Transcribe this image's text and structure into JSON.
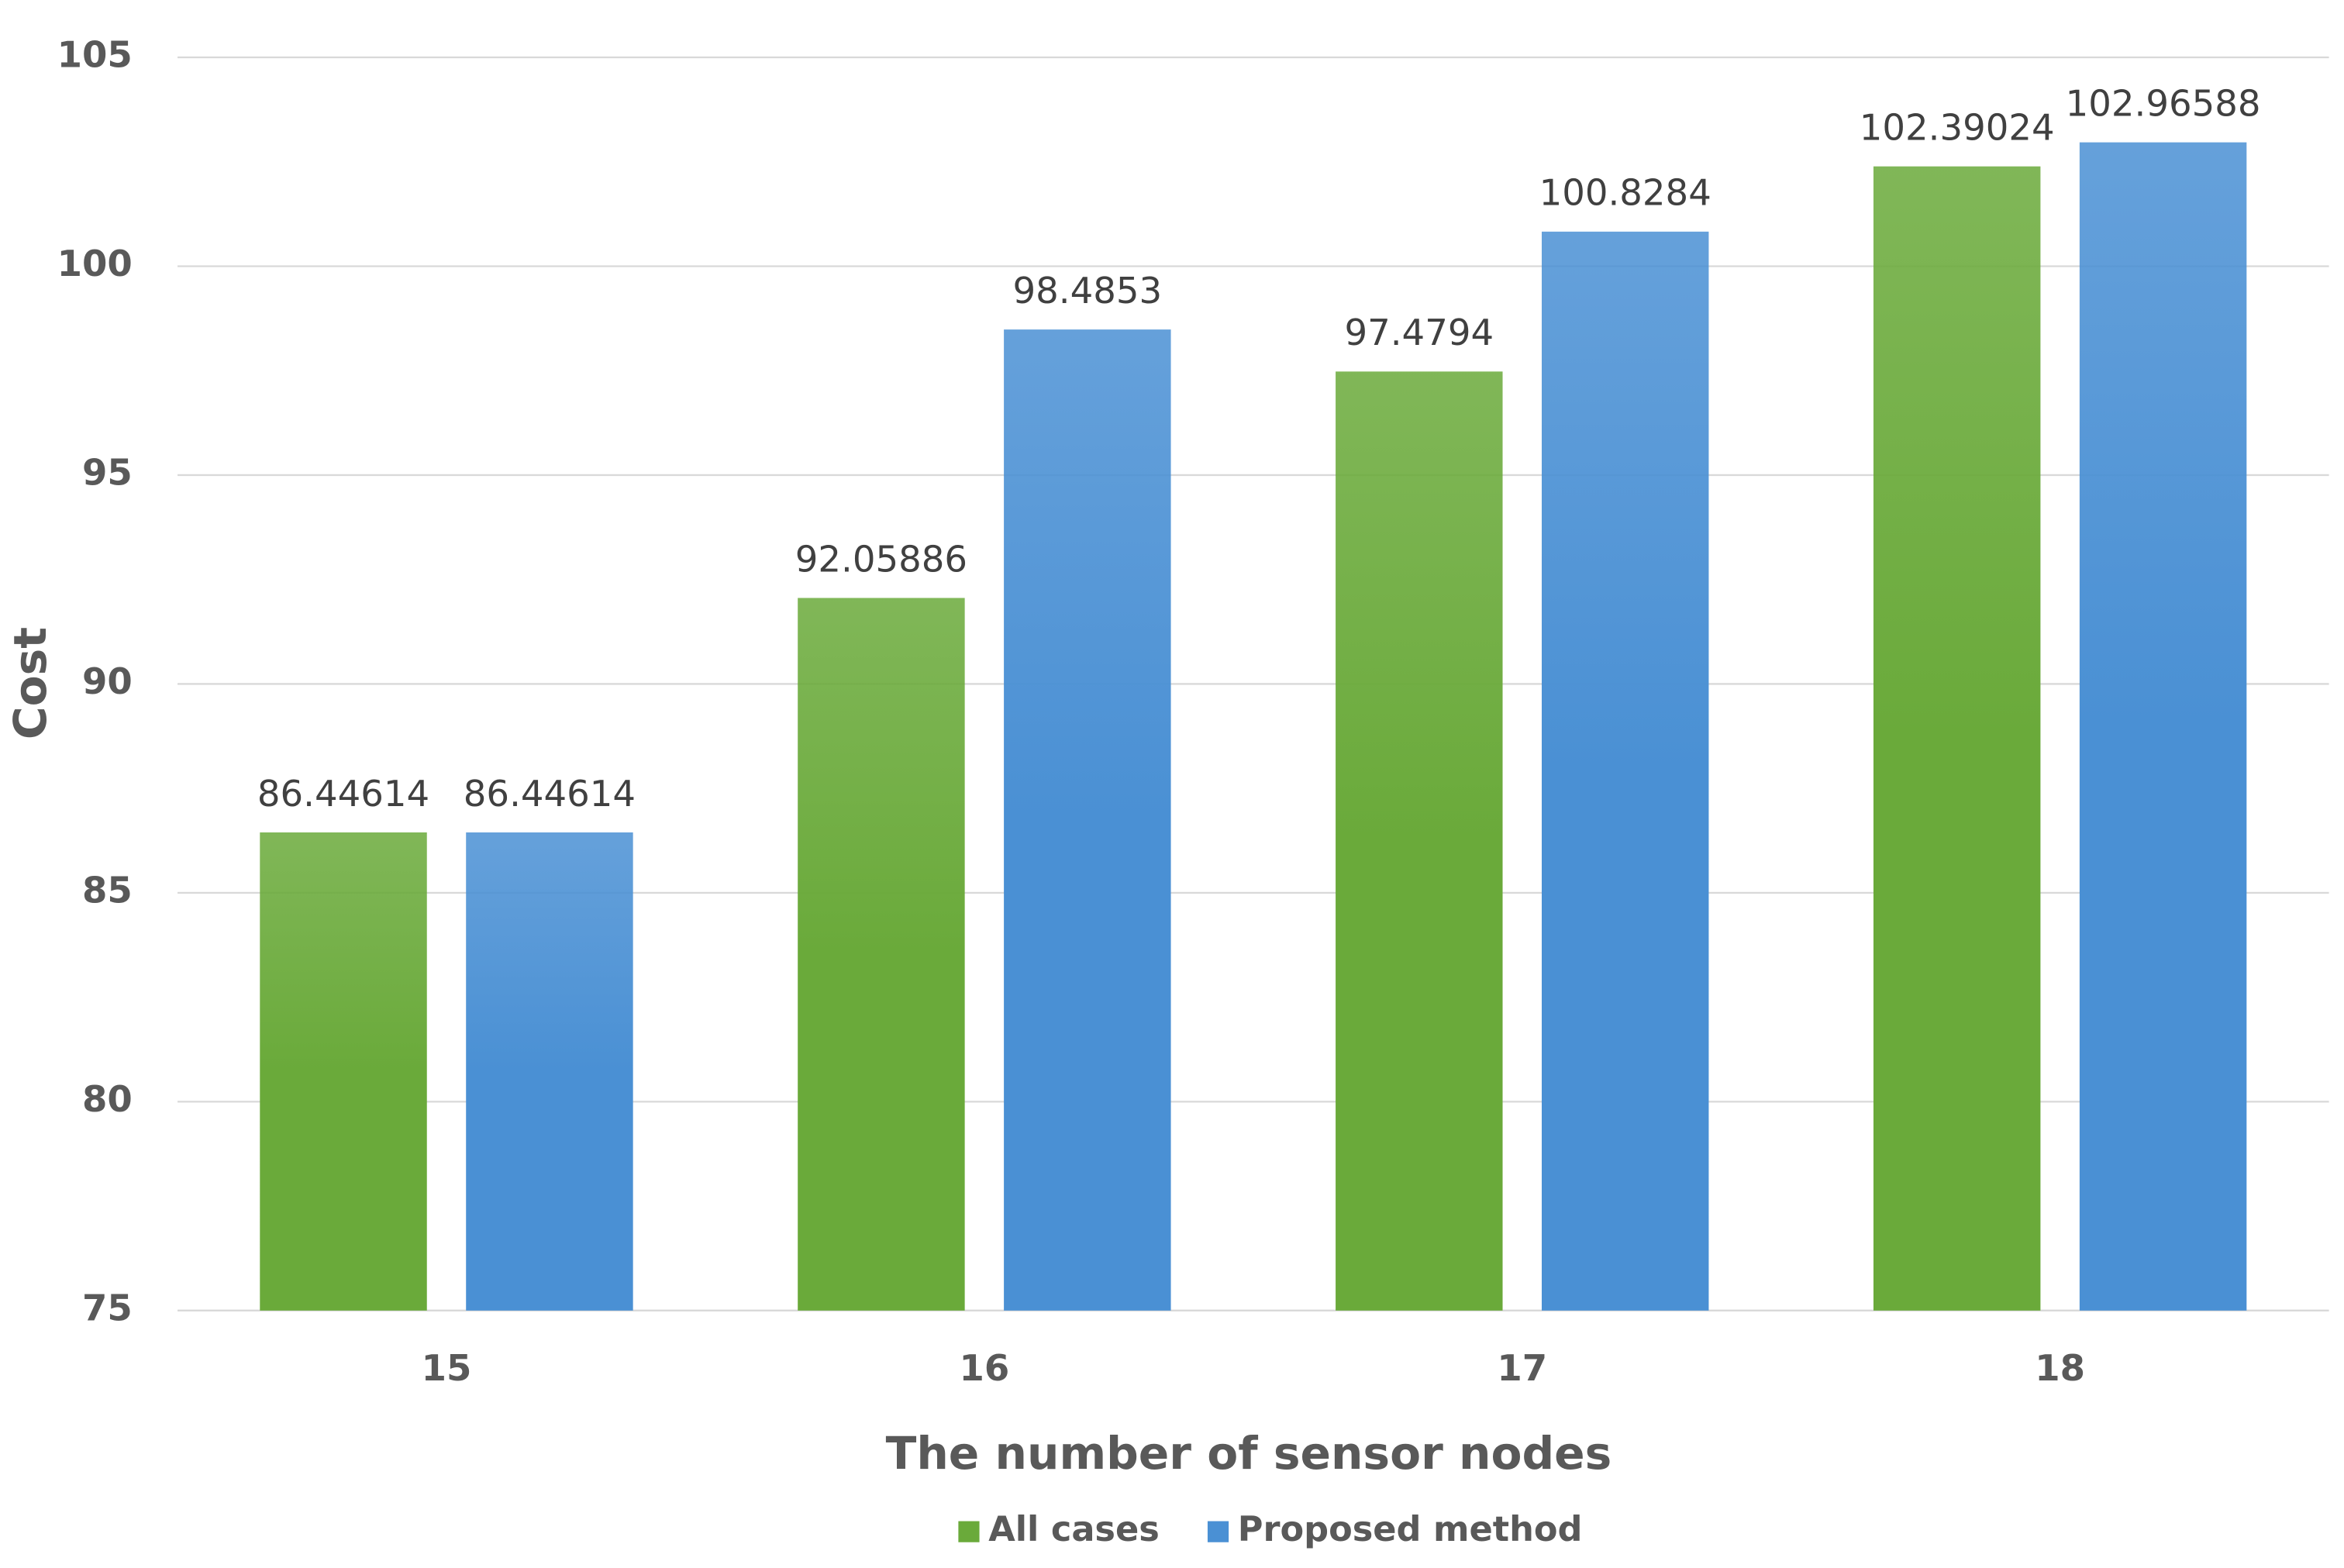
{
  "chart_data": {
    "type": "bar",
    "x_label": "The number of sensor nodes",
    "y_label": "Cost",
    "categories": [
      "15",
      "16",
      "17",
      "18"
    ],
    "series": [
      {
        "name": "All cases",
        "color": "#6aaa3a",
        "values": [
          86.44614,
          92.05886,
          97.4794,
          102.39024
        ]
      },
      {
        "name": "Proposed method",
        "color": "#4a90d4",
        "values": [
          86.44614,
          98.4853,
          100.8284,
          102.96588
        ]
      }
    ],
    "ylim": [
      75,
      105
    ],
    "yticks": [
      75,
      80,
      85,
      90,
      95,
      100,
      105
    ],
    "grid": true,
    "legend": "bottom"
  }
}
